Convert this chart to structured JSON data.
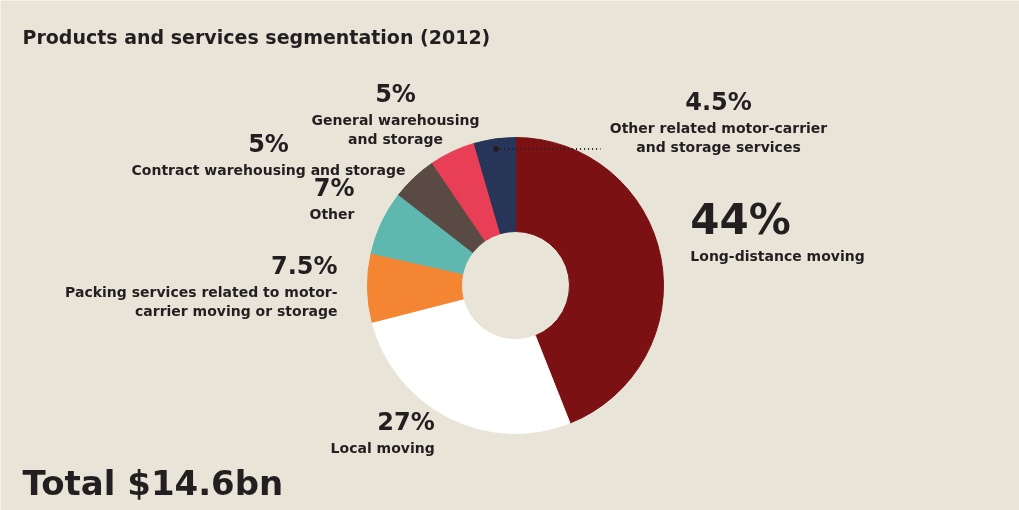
{
  "chart_data": {
    "type": "donut",
    "title": "Products and services segmentation (2012)",
    "categories": [
      "Long-distance moving",
      "Local moving",
      "Packing services related to motor-carrier moving or storage",
      "Other",
      "Contract warehousing and storage",
      "General warehousing and storage",
      "Other related motor-carrier and storage services"
    ],
    "values": [
      44,
      27,
      7.5,
      7,
      5,
      5,
      4.5
    ],
    "colors": [
      "#7b1113",
      "#ffffff",
      "#f48532",
      "#5fb8b0",
      "#5a4a44",
      "#e83e56",
      "#263558"
    ],
    "value_labels": [
      "44%",
      "27%",
      "7.5%",
      "7%",
      "5%",
      "5%",
      "4.5%"
    ],
    "annotations": [
      "Total $14.6bn"
    ]
  }
}
